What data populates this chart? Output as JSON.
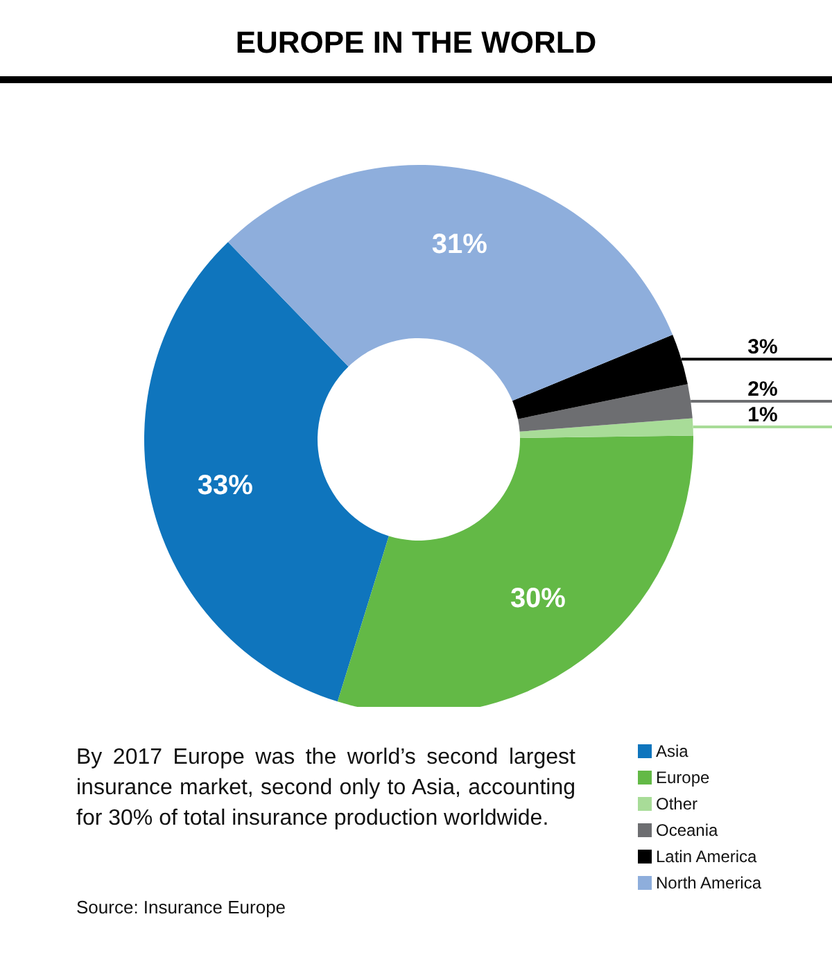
{
  "chart_data": {
    "type": "donut",
    "title": "EUROPE IN THE WORLD",
    "categories": [
      "Asia",
      "Europe",
      "Other",
      "Oceania",
      "Latin America",
      "North America"
    ],
    "values": [
      33,
      30,
      1,
      2,
      3,
      31
    ],
    "colors": [
      "#0f75bd",
      "#63b946",
      "#a8dc98",
      "#6d6e71",
      "#000000",
      "#8eaedc"
    ],
    "value_labels": [
      "33%",
      "30%",
      "1%",
      "2%",
      "3%",
      "31%"
    ],
    "legend": "bottom right",
    "annotations": [
      "By 2017 Europe was the world’s second largest insurance market, second only to Asia, accounting for 30% of total insurance production worldwide.",
      "Source: Insurance Europe"
    ]
  }
}
